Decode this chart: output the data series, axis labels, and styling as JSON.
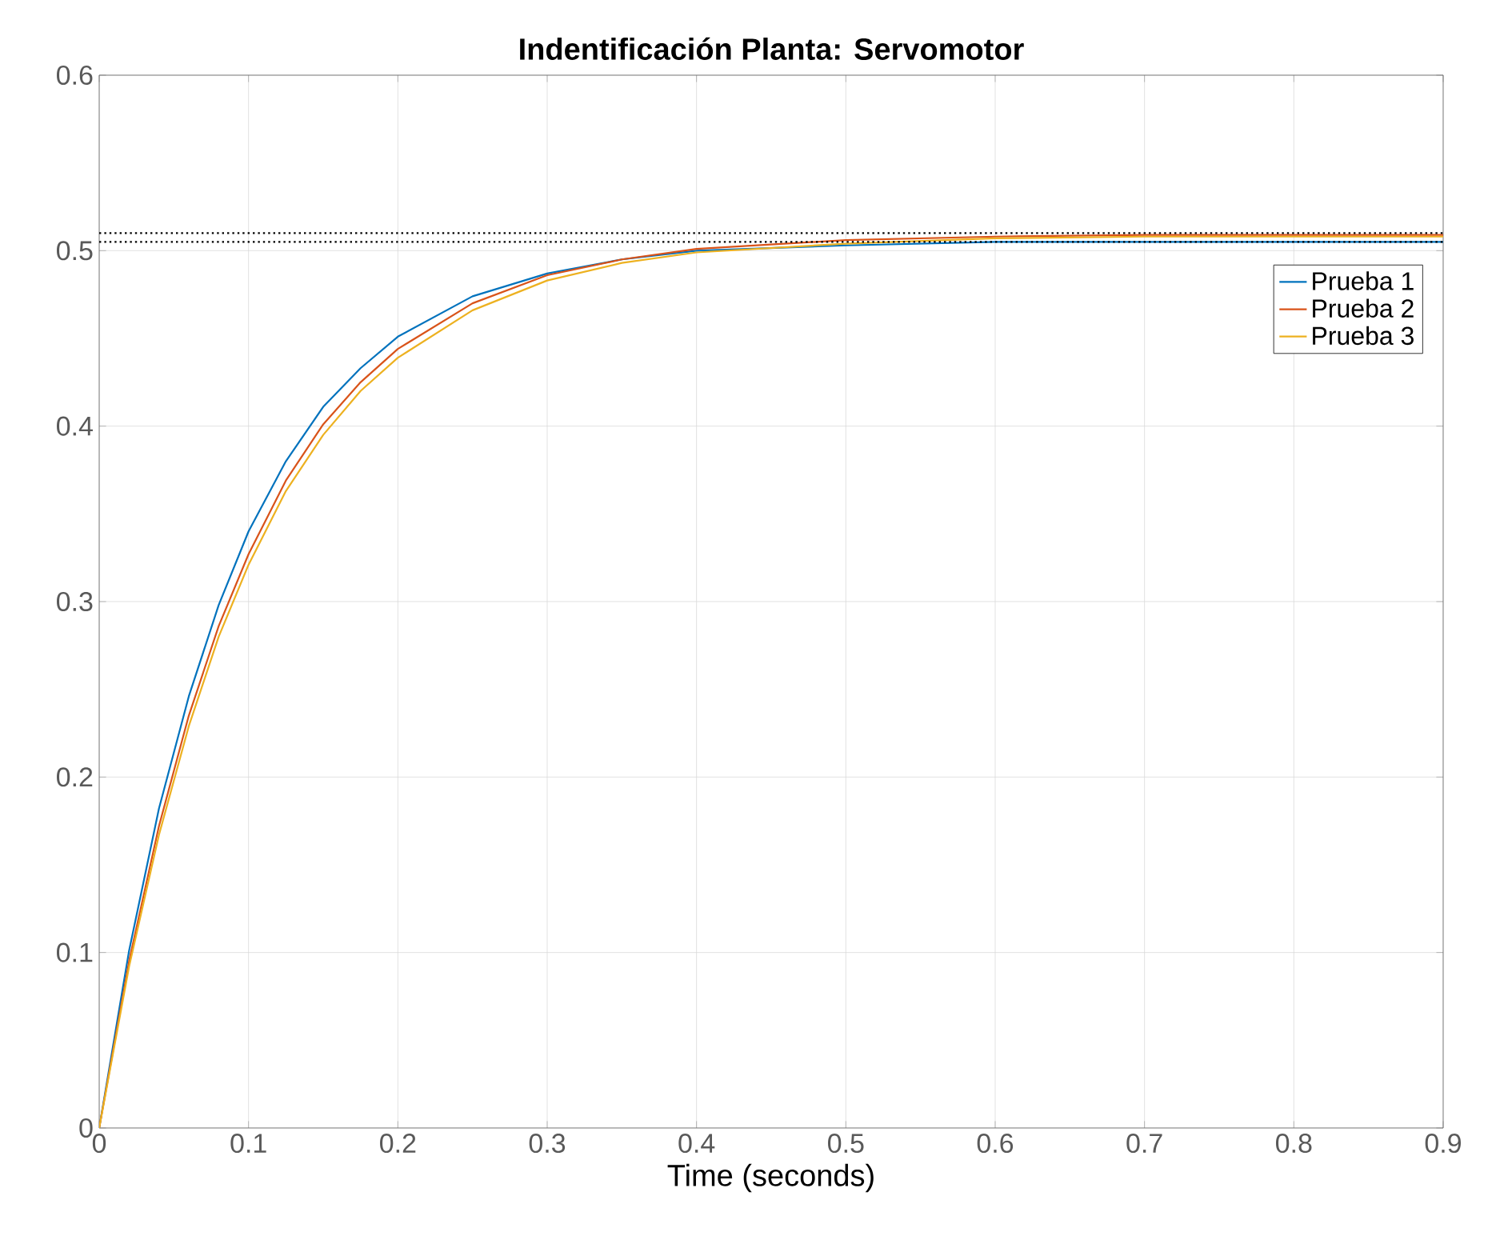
{
  "chart_data": {
    "type": "line",
    "title": "Indentificación Planta: Servomotor",
    "xlabel": "Time (seconds)",
    "x": [
      0,
      0.02,
      0.04,
      0.06,
      0.08,
      0.1,
      0.125,
      0.15,
      0.175,
      0.2,
      0.25,
      0.3,
      0.35,
      0.4,
      0.5,
      0.6,
      0.7,
      0.8,
      0.9
    ],
    "series": [
      {
        "name": "Prueba 1",
        "color": "#0072bd",
        "values": [
          0,
          0.101,
          0.182,
          0.246,
          0.298,
          0.34,
          0.38,
          0.411,
          0.433,
          0.451,
          0.474,
          0.487,
          0.495,
          0.5,
          0.503,
          0.505,
          0.505,
          0.505,
          0.505
        ]
      },
      {
        "name": "Prueba 2",
        "color": "#d95319",
        "values": [
          0,
          0.095,
          0.172,
          0.235,
          0.286,
          0.327,
          0.369,
          0.401,
          0.425,
          0.444,
          0.47,
          0.486,
          0.495,
          0.501,
          0.506,
          0.508,
          0.509,
          0.509,
          0.509
        ]
      },
      {
        "name": "Prueba 3",
        "color": "#edb120",
        "values": [
          0,
          0.092,
          0.167,
          0.229,
          0.28,
          0.321,
          0.363,
          0.395,
          0.42,
          0.439,
          0.466,
          0.483,
          0.493,
          0.499,
          0.504,
          0.507,
          0.508,
          0.508,
          0.508
        ]
      }
    ],
    "xlim": [
      0,
      0.9
    ],
    "xticks": [
      0,
      0.1,
      0.2,
      0.3,
      0.4,
      0.5,
      0.6,
      0.7,
      0.8,
      0.9
    ],
    "ylim": [
      0,
      0.6
    ],
    "yticks": [
      0,
      0.1,
      0.2,
      0.3,
      0.4,
      0.5,
      0.6
    ],
    "ref_lines": [
      {
        "axis": "y",
        "value": 0.505,
        "color": "#000000",
        "line_style": "dotted"
      },
      {
        "axis": "y",
        "value": 0.51,
        "color": "#000000",
        "line_style": "dotted"
      }
    ],
    "grid": true,
    "legend": "top right",
    "marker": "none",
    "line_style": "solid"
  }
}
